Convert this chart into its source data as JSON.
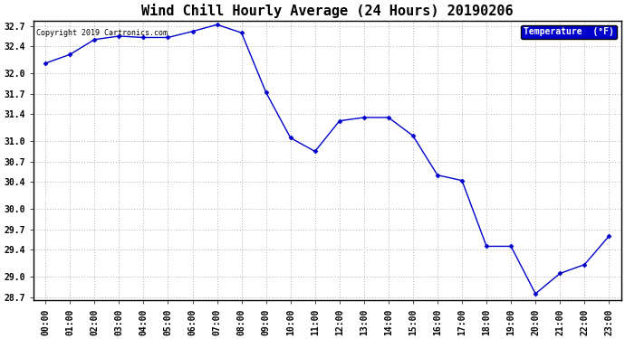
{
  "title": "Wind Chill Hourly Average (24 Hours) 20190206",
  "copyright_text": "Copyright 2019 Cartronics.com",
  "legend_label": "Temperature  (°F)",
  "hours": [
    "00:00",
    "01:00",
    "02:00",
    "03:00",
    "04:00",
    "05:00",
    "06:00",
    "07:00",
    "08:00",
    "09:00",
    "10:00",
    "11:00",
    "12:00",
    "13:00",
    "14:00",
    "15:00",
    "16:00",
    "17:00",
    "18:00",
    "19:00",
    "20:00",
    "21:00",
    "22:00",
    "23:00"
  ],
  "values": [
    32.15,
    32.28,
    32.5,
    32.55,
    32.53,
    32.53,
    32.62,
    32.72,
    32.6,
    31.72,
    31.05,
    30.85,
    31.3,
    31.35,
    31.35,
    31.08,
    30.5,
    30.42,
    29.45,
    29.45,
    28.75,
    29.05,
    29.18,
    29.6
  ],
  "line_color": "#0000cc",
  "marker": "D",
  "marker_size": 2.5,
  "ylim_min": 28.65,
  "ylim_max": 32.78,
  "ytick_values": [
    28.7,
    29.0,
    29.4,
    29.7,
    30.0,
    30.4,
    30.7,
    31.0,
    31.4,
    31.7,
    32.0,
    32.4,
    32.7
  ],
  "bg_color": "#ffffff",
  "plot_bg_color": "#ffffff",
  "grid_color": "#b0b0b0",
  "title_fontsize": 11,
  "copyright_fontsize": 6,
  "tick_fontsize": 7,
  "legend_fontsize": 7,
  "legend_bg_color": "#0000cc",
  "legend_text_color": "#ffffff",
  "fig_width": 6.9,
  "fig_height": 3.75
}
